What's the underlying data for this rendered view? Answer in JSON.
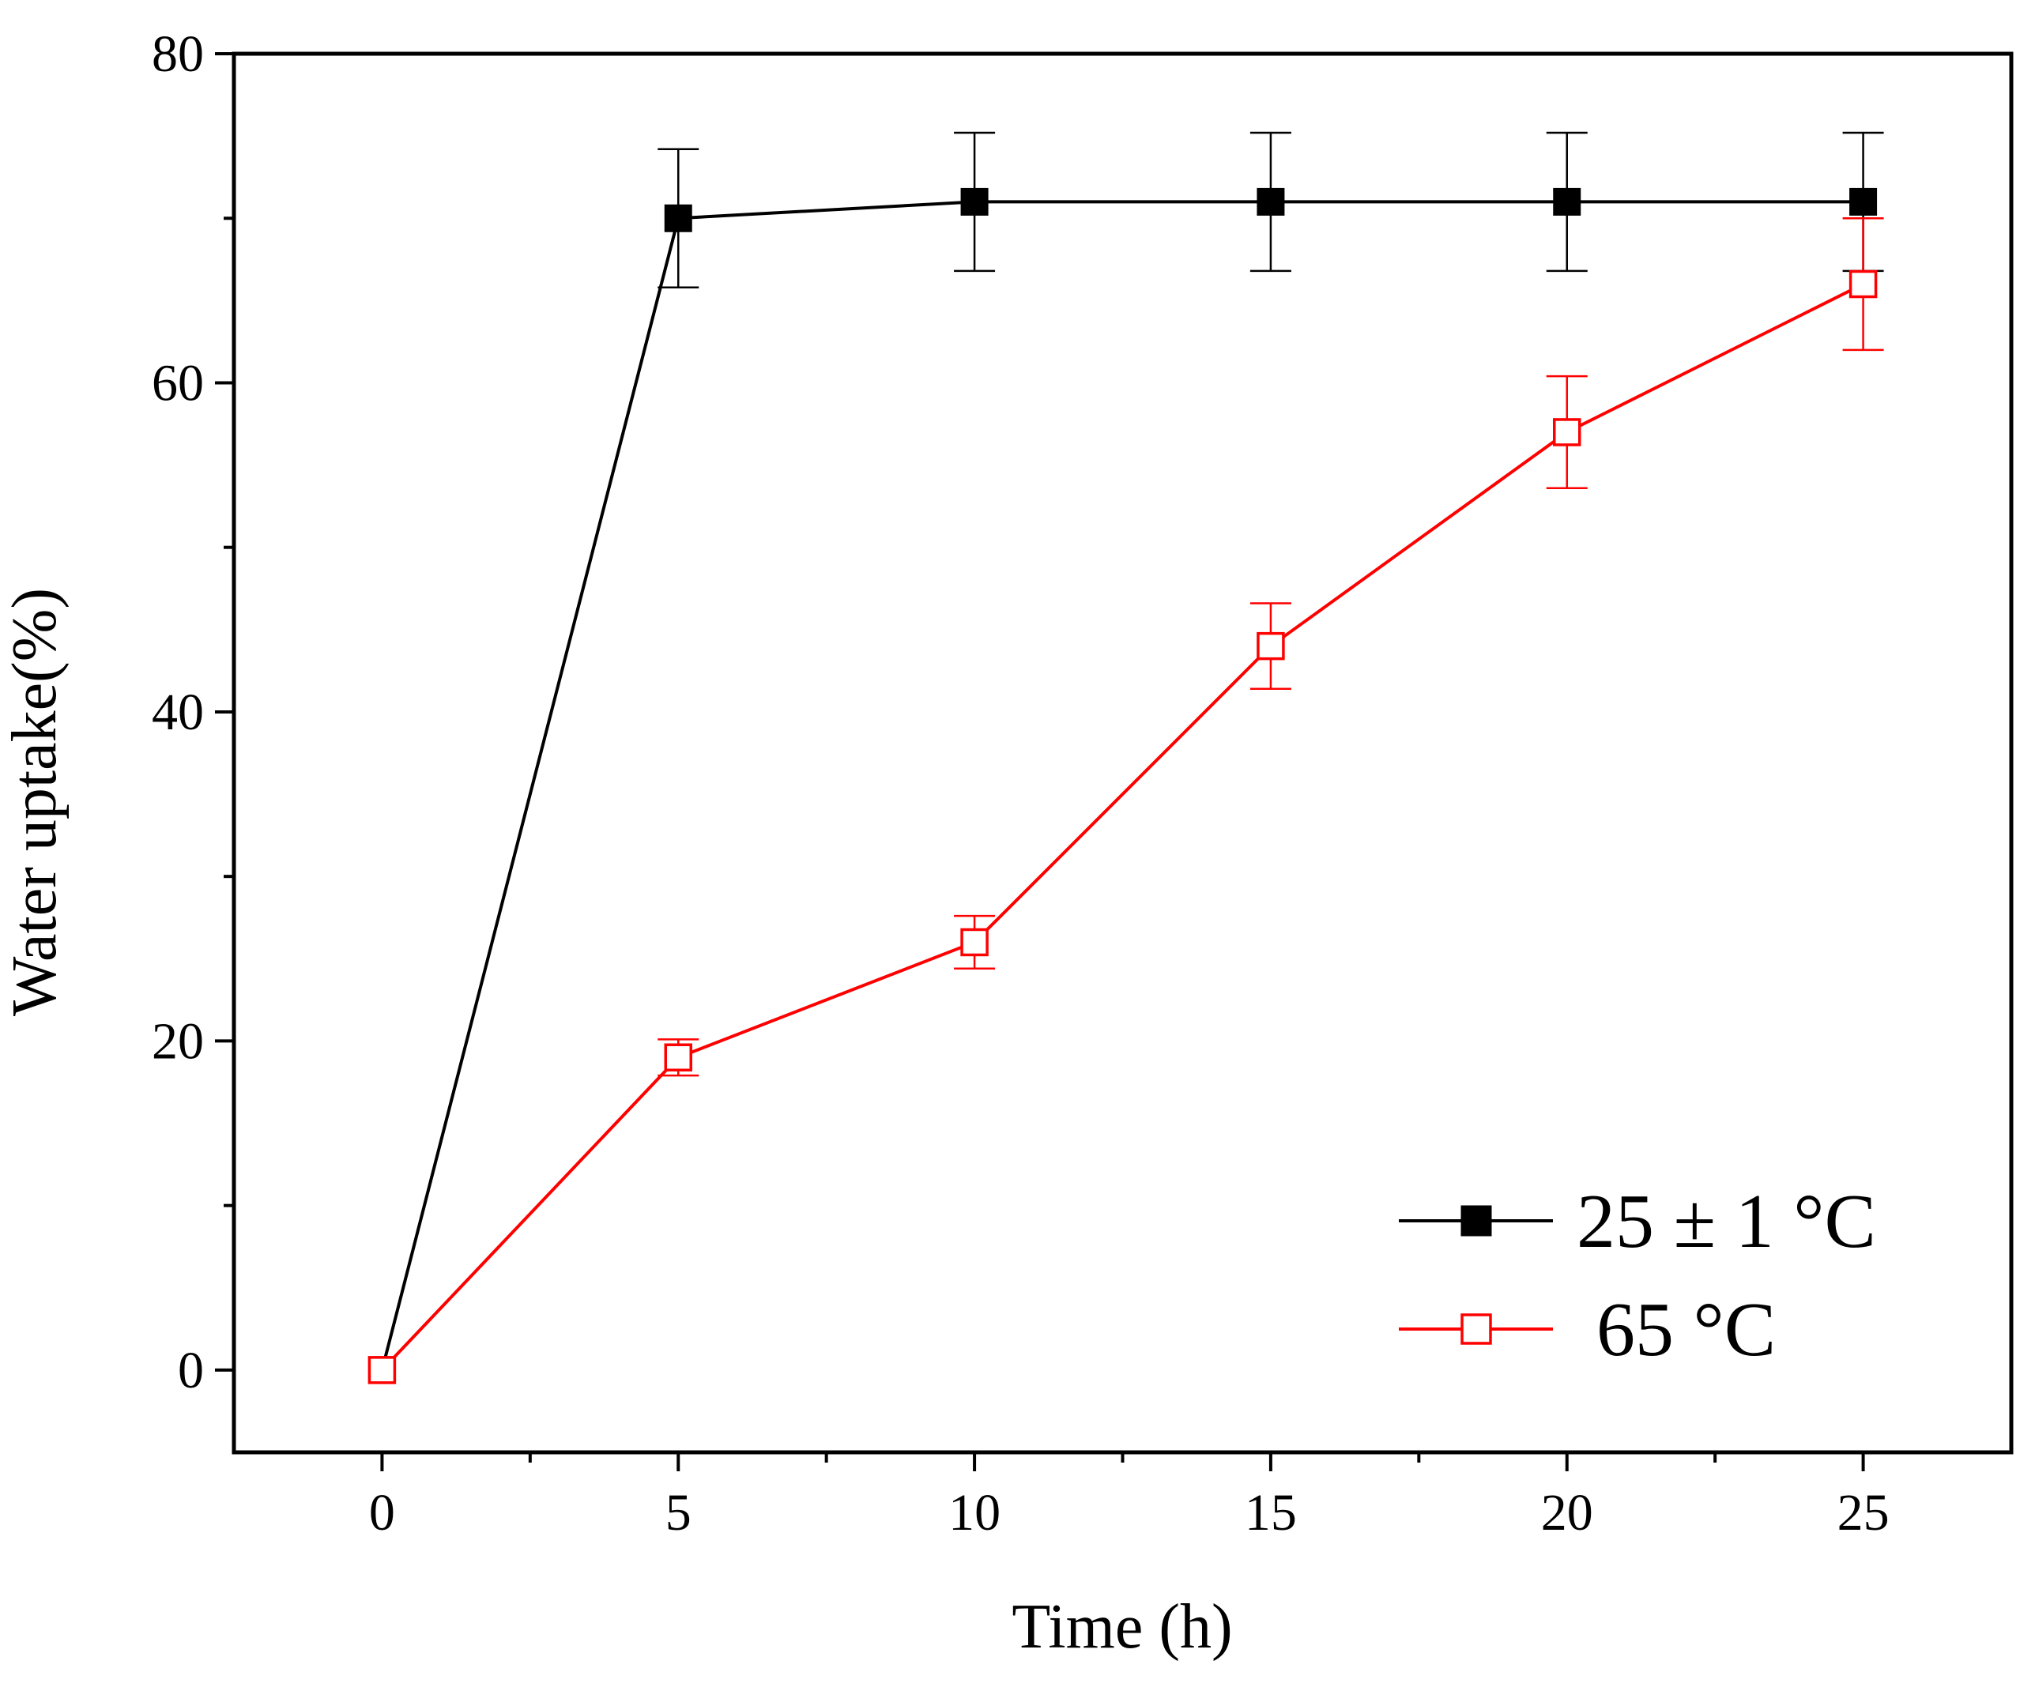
{
  "chart_data": {
    "type": "line",
    "title": "",
    "xlabel": "Time (h)",
    "ylabel": "Water uptake(%)",
    "xlim": [
      -2.5,
      27.5
    ],
    "ylim": [
      -5,
      80
    ],
    "x_ticks": [
      0,
      5,
      10,
      15,
      20,
      25
    ],
    "x_tick_labels": [
      "0",
      "5",
      "10",
      "15",
      "20",
      "25"
    ],
    "x_minor_ticks": [
      2.5,
      7.5,
      12.5,
      17.5,
      22.5
    ],
    "y_ticks": [
      0,
      20,
      40,
      60,
      80
    ],
    "y_tick_labels": [
      "0",
      "20",
      "40",
      "60",
      "80"
    ],
    "y_minor_ticks": [
      10,
      30,
      50,
      70
    ],
    "grid": false,
    "legend_position": "bottom-right",
    "series": [
      {
        "name": "25 ± 1 °C",
        "color": "#000000",
        "marker": "filled-square",
        "x": [
          0,
          5,
          10,
          15,
          20,
          25
        ],
        "y": [
          0,
          70,
          71,
          71,
          71,
          71
        ],
        "error": [
          0,
          4.2,
          4.2,
          4.2,
          4.2,
          4.2
        ]
      },
      {
        "name": "65 °C",
        "color": "#ff0000",
        "marker": "open-square",
        "x": [
          0,
          5,
          10,
          15,
          20,
          25
        ],
        "y": [
          0,
          19,
          26,
          44,
          57,
          66
        ],
        "error": [
          0,
          1.1,
          1.6,
          2.6,
          3.4,
          4.0
        ]
      }
    ]
  }
}
